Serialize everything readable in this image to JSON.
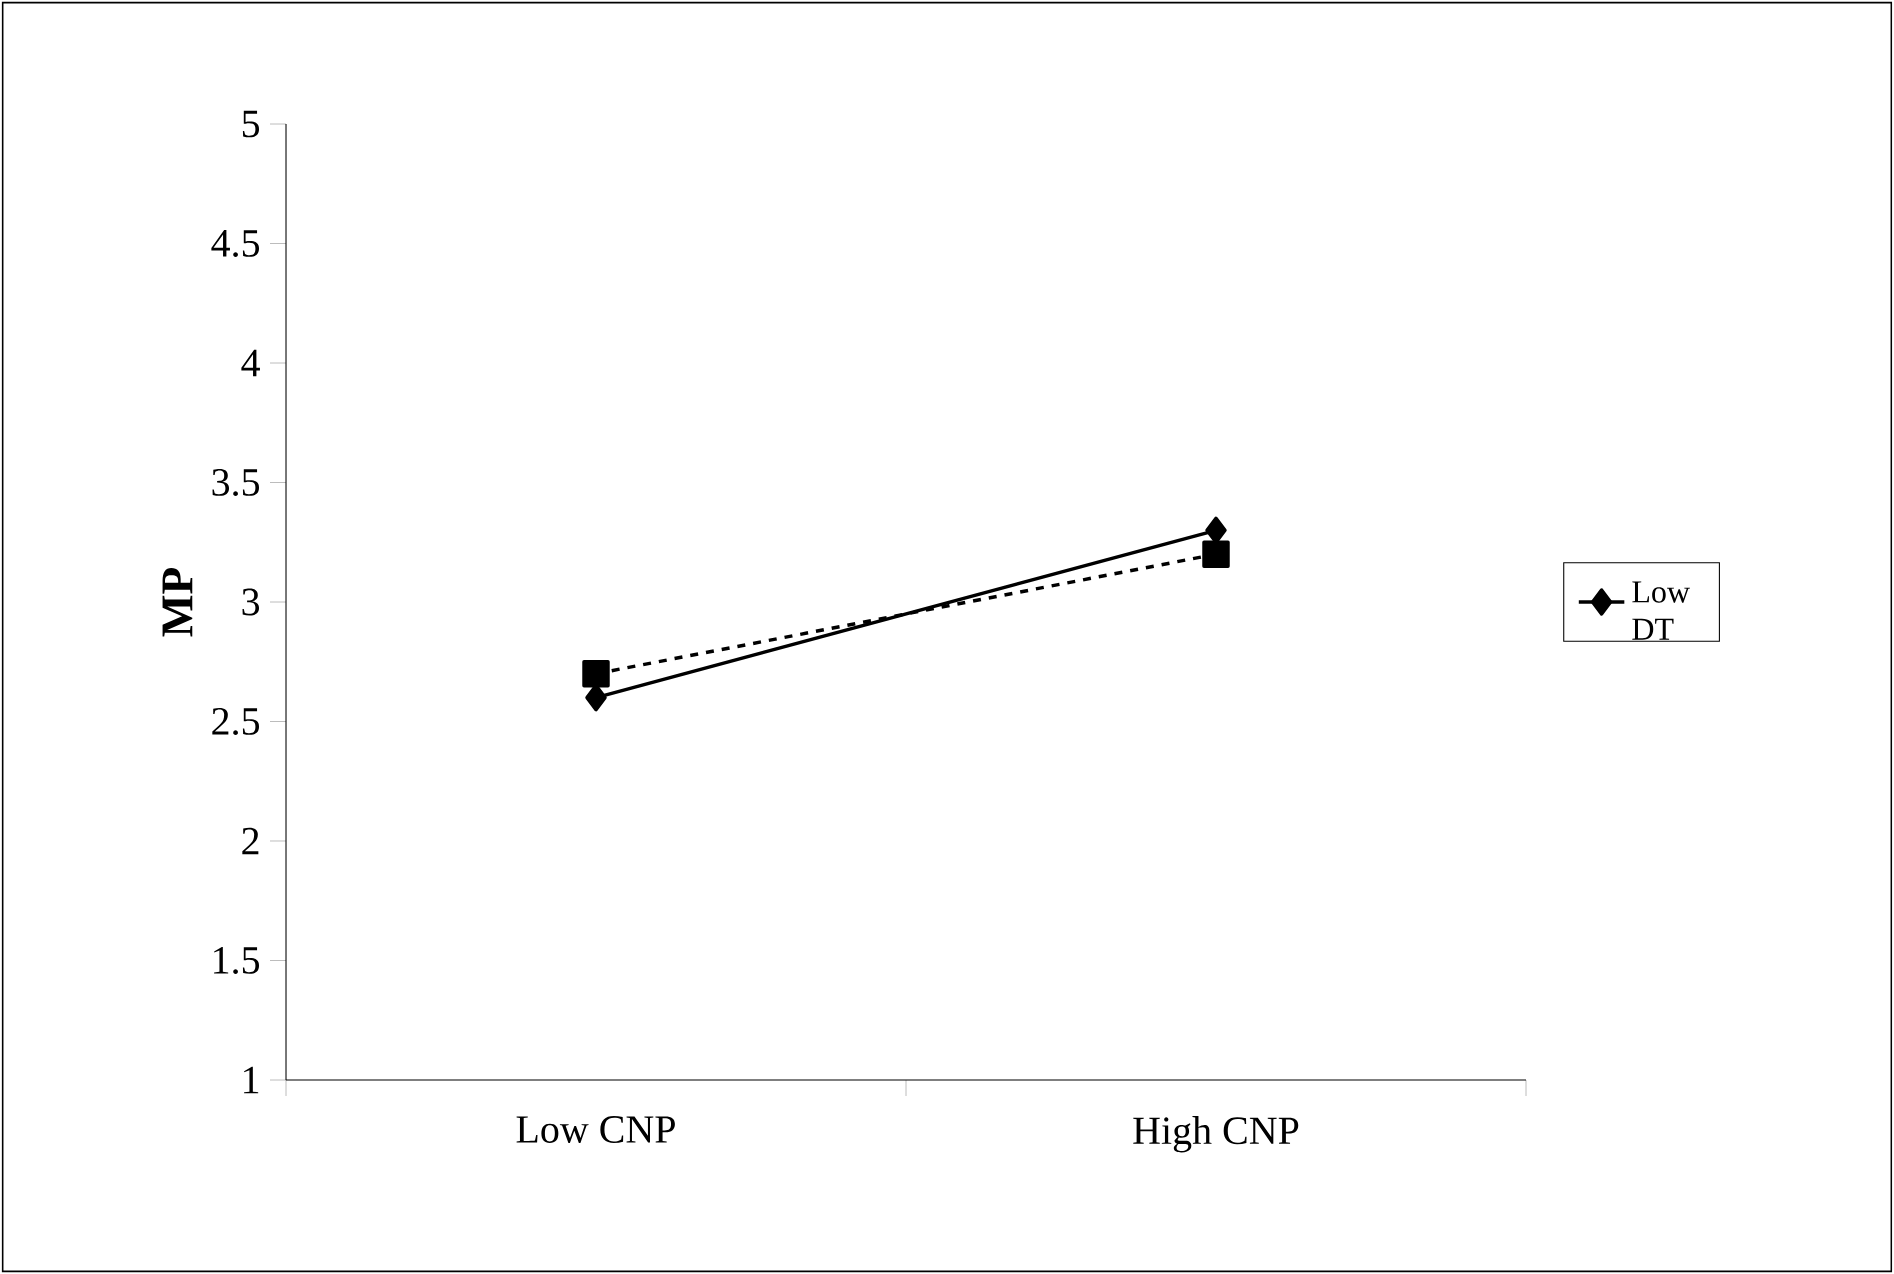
{
  "chart_data": {
    "type": "line",
    "ylabel": "MP",
    "categories": [
      "Low CNP",
      "High CNP"
    ],
    "series": [
      {
        "name": "Low DT",
        "color": "#000000",
        "values": [
          2.6,
          3.3
        ],
        "marker": "diamond",
        "line_style": "solid"
      },
      {
        "color": "#000000",
        "values": [
          2.7,
          3.2
        ],
        "marker": "square",
        "line_style": "dashed"
      }
    ],
    "ylim": [
      1,
      5
    ],
    "yticks": [
      1,
      1.5,
      2,
      2.5,
      3,
      3.5,
      4,
      4.5,
      5
    ],
    "legend": "right"
  }
}
